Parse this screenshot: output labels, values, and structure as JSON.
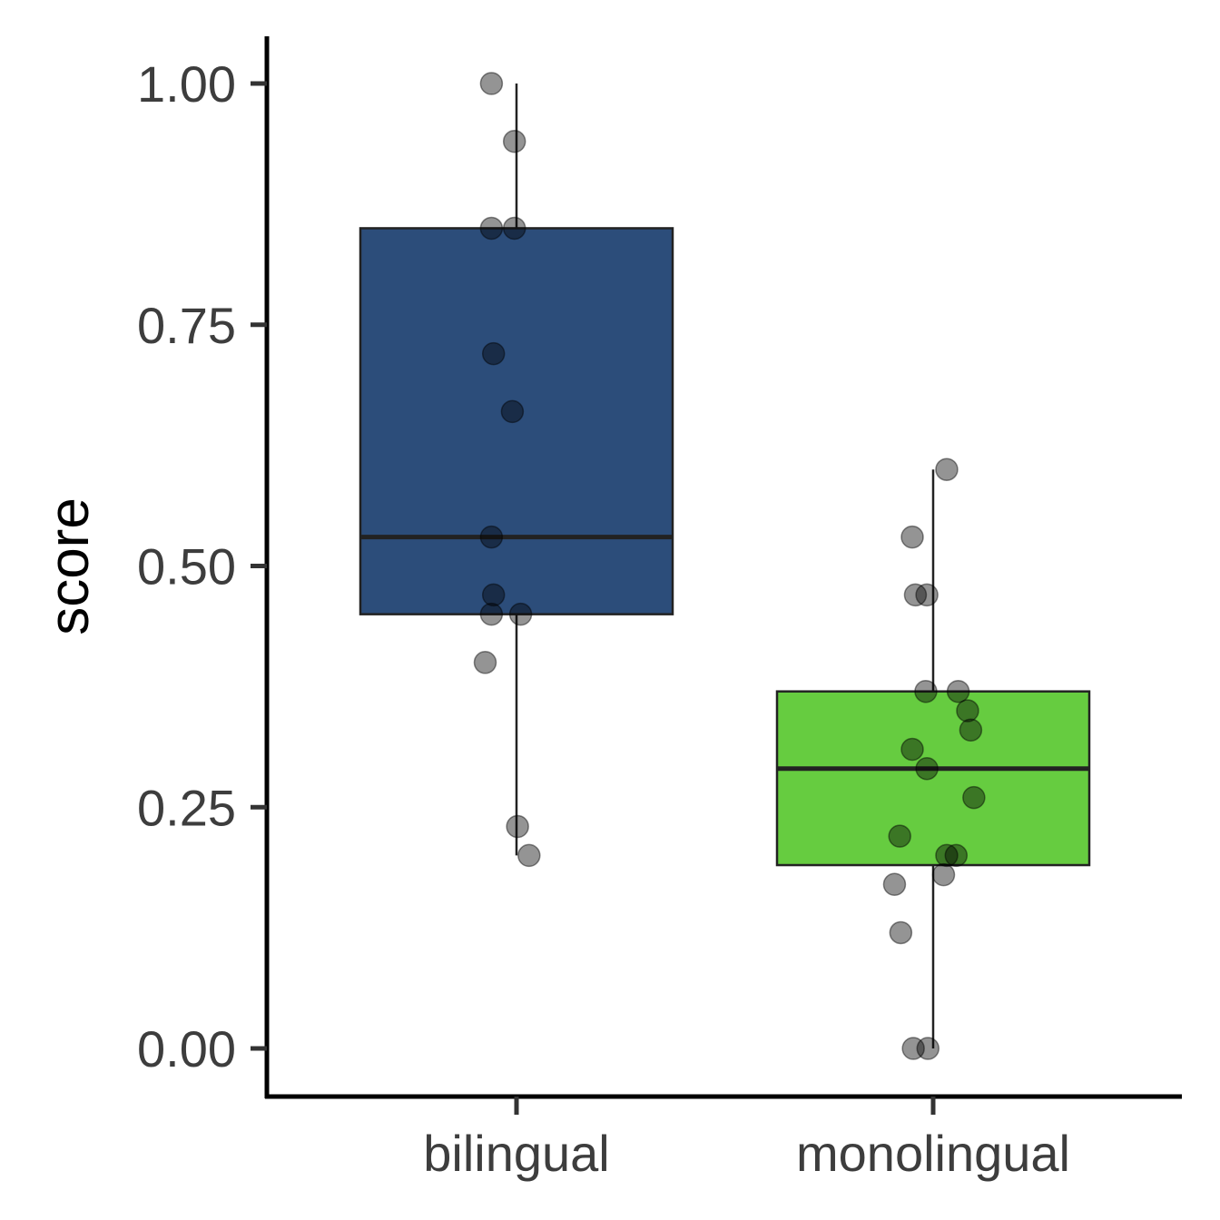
{
  "chart_data": {
    "type": "box",
    "title": "",
    "xlabel": "",
    "ylabel": "score",
    "ylim": [
      -0.05,
      1.05
    ],
    "yticks": [
      0.0,
      0.25,
      0.5,
      0.75,
      1.0
    ],
    "ytick_labels": [
      "0.00",
      "0.25",
      "0.50",
      "0.75",
      "1.00"
    ],
    "categories": [
      "bilingual",
      "monolingual"
    ],
    "grid": false,
    "legend": "none",
    "point_color": "#7a7a7a",
    "box_edge_color": "#222222",
    "groups": [
      {
        "category": "bilingual",
        "color": "#2c4d7a",
        "box": {
          "whisker_low": 0.2,
          "q1": 0.45,
          "median": 0.53,
          "q3": 0.85,
          "whisker_high": 1.0
        },
        "points": [
          {
            "jitter": -0.12,
            "y": 1.0
          },
          {
            "jitter": -0.01,
            "y": 0.94
          },
          {
            "jitter": -0.12,
            "y": 0.85
          },
          {
            "jitter": -0.01,
            "y": 0.85
          },
          {
            "jitter": -0.11,
            "y": 0.72
          },
          {
            "jitter": -0.02,
            "y": 0.66
          },
          {
            "jitter": -0.12,
            "y": 0.53
          },
          {
            "jitter": -0.11,
            "y": 0.47
          },
          {
            "jitter": -0.12,
            "y": 0.45
          },
          {
            "jitter": 0.02,
            "y": 0.45
          },
          {
            "jitter": -0.15,
            "y": 0.4
          },
          {
            "jitter": 0.005,
            "y": 0.23
          },
          {
            "jitter": 0.06,
            "y": 0.2
          }
        ]
      },
      {
        "category": "monolingual",
        "color": "#66cc40",
        "box": {
          "whisker_low": 0.0,
          "q1": 0.19,
          "median": 0.29,
          "q3": 0.37,
          "whisker_high": 0.6
        },
        "points": [
          {
            "jitter": 0.065,
            "y": 0.6
          },
          {
            "jitter": -0.1,
            "y": 0.53
          },
          {
            "jitter": -0.085,
            "y": 0.47
          },
          {
            "jitter": -0.03,
            "y": 0.47
          },
          {
            "jitter": -0.035,
            "y": 0.37
          },
          {
            "jitter": 0.12,
            "y": 0.37
          },
          {
            "jitter": 0.165,
            "y": 0.35
          },
          {
            "jitter": 0.18,
            "y": 0.33
          },
          {
            "jitter": -0.1,
            "y": 0.31
          },
          {
            "jitter": -0.03,
            "y": 0.29
          },
          {
            "jitter": 0.195,
            "y": 0.26
          },
          {
            "jitter": -0.16,
            "y": 0.22
          },
          {
            "jitter": 0.065,
            "y": 0.2
          },
          {
            "jitter": 0.11,
            "y": 0.2
          },
          {
            "jitter": 0.05,
            "y": 0.18
          },
          {
            "jitter": -0.185,
            "y": 0.17
          },
          {
            "jitter": -0.155,
            "y": 0.12
          },
          {
            "jitter": -0.095,
            "y": 0.0
          },
          {
            "jitter": -0.025,
            "y": 0.0
          }
        ]
      }
    ]
  }
}
